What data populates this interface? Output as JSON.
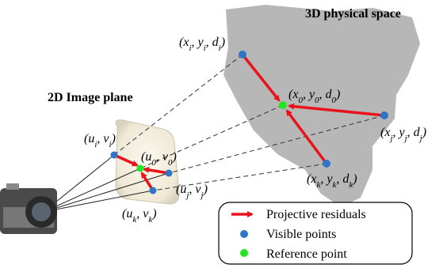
{
  "titles": [
    "3D physical space",
    "2D Image plane"
  ],
  "point_labels": [
    {
      "parts": [
        "(x",
        "i",
        ", y",
        "i",
        ", d",
        "i",
        ")"
      ]
    },
    {
      "parts": [
        "(x",
        "0",
        ", y",
        "0",
        ", d",
        "0",
        ")"
      ]
    },
    {
      "parts": [
        "(x",
        "j",
        ", y",
        "j",
        ", d",
        "j",
        ")"
      ]
    },
    {
      "parts": [
        "(x",
        "k",
        ", y",
        "k",
        ", d",
        "k",
        ")"
      ]
    },
    {
      "parts": [
        "(u",
        "i",
        ", v",
        "i",
        ")"
      ]
    },
    {
      "parts": [
        "(u",
        "0",
        ", v",
        "0",
        ")"
      ]
    },
    {
      "parts": [
        "(u",
        "j",
        ", v",
        "j",
        ")"
      ]
    },
    {
      "parts": [
        "(u",
        "k",
        ", v",
        "k",
        ")"
      ]
    }
  ],
  "legend": [
    "Projective residuals",
    "Visible points",
    "Reference point"
  ]
}
